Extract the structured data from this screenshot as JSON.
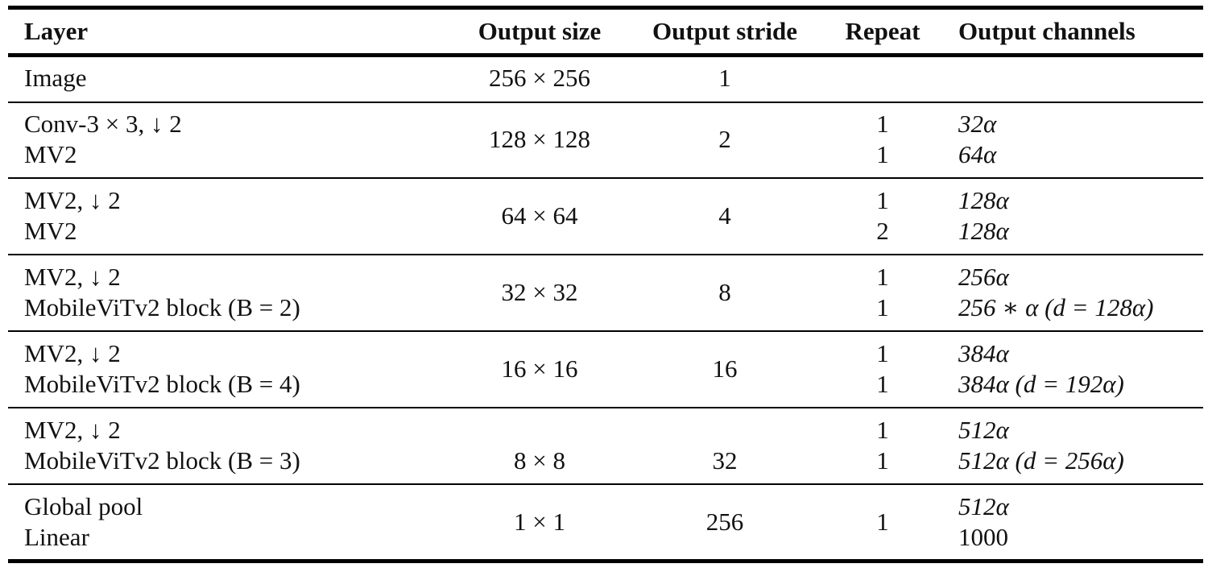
{
  "header": {
    "layer": "Layer",
    "output_size": "Output size",
    "output_stride": "Output stride",
    "repeat": "Repeat",
    "output_channels": "Output channels"
  },
  "rows": [
    {
      "layers": [
        "Image"
      ],
      "output_size": "256 × 256",
      "output_stride": "1",
      "repeats": [],
      "channels": []
    },
    {
      "layers": [
        "Conv-3 × 3, ↓ 2",
        "MV2"
      ],
      "output_size": "128 × 128",
      "output_stride": "2",
      "repeats": [
        "1",
        "1"
      ],
      "channels": [
        "32α",
        "64α"
      ]
    },
    {
      "layers": [
        "MV2, ↓ 2",
        "MV2"
      ],
      "output_size": "64 × 64",
      "output_stride": "4",
      "repeats": [
        "1",
        "2"
      ],
      "channels": [
        "128α",
        "128α"
      ]
    },
    {
      "layers": [
        "MV2, ↓ 2",
        "MobileViTv2 block (B = 2)"
      ],
      "output_size": "32 × 32",
      "output_stride": "8",
      "repeats": [
        "1",
        "1"
      ],
      "channels": [
        "256α",
        "256 ∗ α (d = 128α)"
      ]
    },
    {
      "layers": [
        "MV2, ↓ 2",
        "MobileViTv2 block (B = 4)"
      ],
      "output_size": "16 × 16",
      "output_stride": "16",
      "repeats": [
        "1",
        "1"
      ],
      "channels": [
        "384α",
        "384α (d = 192α)"
      ]
    },
    {
      "layers": [
        "MV2, ↓ 2",
        "MobileViTv2 block (B = 3)"
      ],
      "output_size": "8 × 8",
      "output_stride": "32",
      "repeats": [
        "1",
        "1"
      ],
      "channels": [
        "512α",
        "512α (d = 256α)"
      ]
    },
    {
      "layers": [
        "Global pool",
        "Linear"
      ],
      "output_size": "1 × 1",
      "output_stride": "256",
      "repeats": [
        "1"
      ],
      "channels": [
        "512α",
        "1000"
      ]
    }
  ]
}
